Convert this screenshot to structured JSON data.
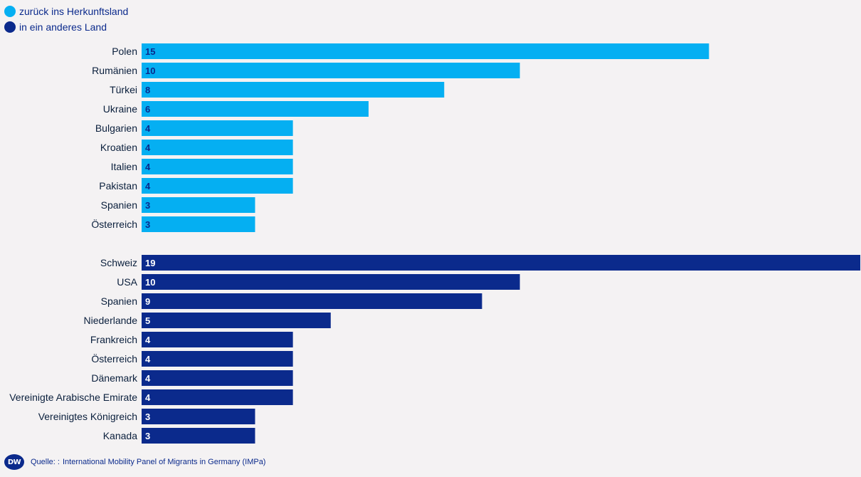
{
  "legend": [
    {
      "label": "zurück ins Herkunftsland",
      "color": "#05aff2"
    },
    {
      "label": "in ein anderes Land",
      "color": "#0b2a8c"
    }
  ],
  "chart_data": {
    "type": "bar",
    "orientation": "horizontal",
    "xlim": [
      0,
      19
    ],
    "groups": [
      {
        "series": "zurück ins Herkunftsland",
        "color": "#05aff2",
        "label_color": "#0b2a8c",
        "categories": [
          "Polen",
          "Rumänien",
          "Türkei",
          "Ukraine",
          "Bulgarien",
          "Kroatien",
          "Italien",
          "Pakistan",
          "Spanien",
          "Österreich"
        ],
        "values": [
          15,
          10,
          8,
          6,
          4,
          4,
          4,
          4,
          3,
          3
        ]
      },
      {
        "series": "in ein anderes Land",
        "color": "#0b2a8c",
        "label_color": "#ffffff",
        "categories": [
          "Schweiz",
          "USA",
          "Spanien",
          "Niederlande",
          "Frankreich",
          "Österreich",
          "Dänemark",
          "Vereinigte Arabische Emirate",
          "Vereinigtes Königreich",
          "Kanada"
        ],
        "values": [
          19,
          10,
          9,
          5,
          4,
          4,
          4,
          4,
          3,
          3
        ]
      }
    ]
  },
  "footer": {
    "logo": "DW",
    "source_label": "Quelle: :",
    "source_text": "International Mobility Panel of Migrants in Germany (IMPa)"
  }
}
